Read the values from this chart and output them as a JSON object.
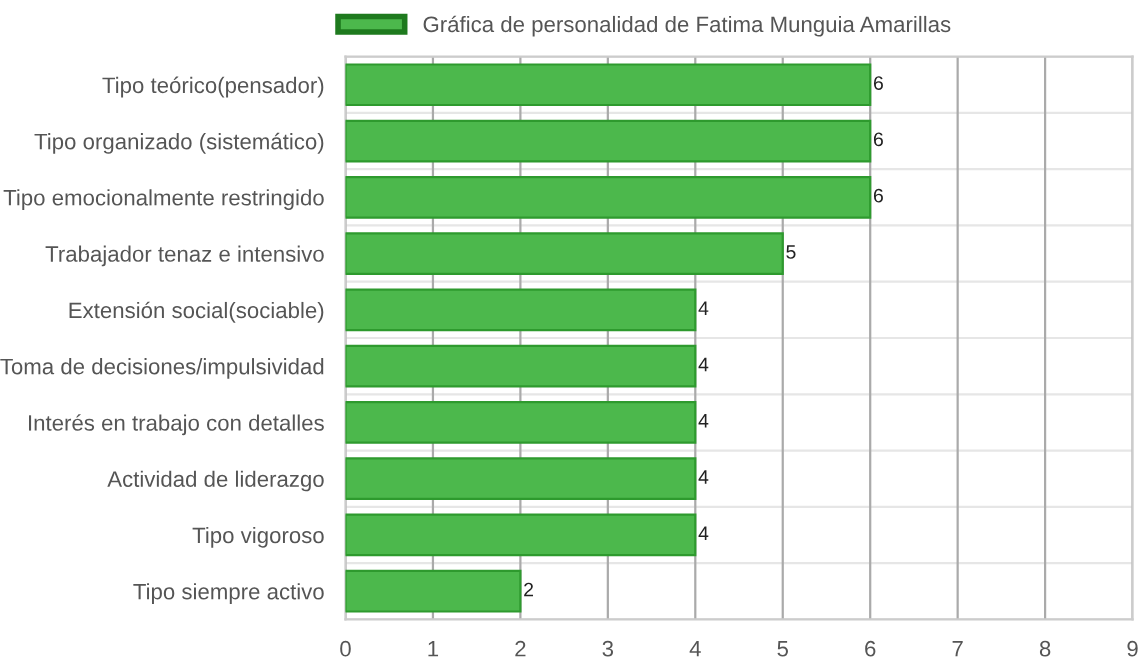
{
  "chart_data": {
    "type": "bar",
    "orientation": "horizontal",
    "categories": [
      "Tipo teórico(pensador)",
      "Tipo organizado (sistemático)",
      "Tipo emocionalmente restringido",
      "Trabajador tenaz e intensivo",
      "Extensión social(sociable)",
      "Toma de decisiones/impulsividad",
      "Interés en trabajo con detalles",
      "Actividad de liderazgo",
      "Tipo vigoroso",
      "Tipo siempre activo"
    ],
    "series": [
      {
        "name": "Gráfica de personalidad de Fatima Munguia Amarillas",
        "color": "#4cb84c",
        "values": [
          6,
          6,
          6,
          5,
          4,
          4,
          4,
          4,
          4,
          2
        ]
      }
    ],
    "xlim": [
      0,
      9
    ],
    "xticks": [
      0,
      1,
      2,
      3,
      4,
      5,
      6,
      7,
      8,
      9
    ],
    "grid": true,
    "legend": "top",
    "data_labels": true
  }
}
